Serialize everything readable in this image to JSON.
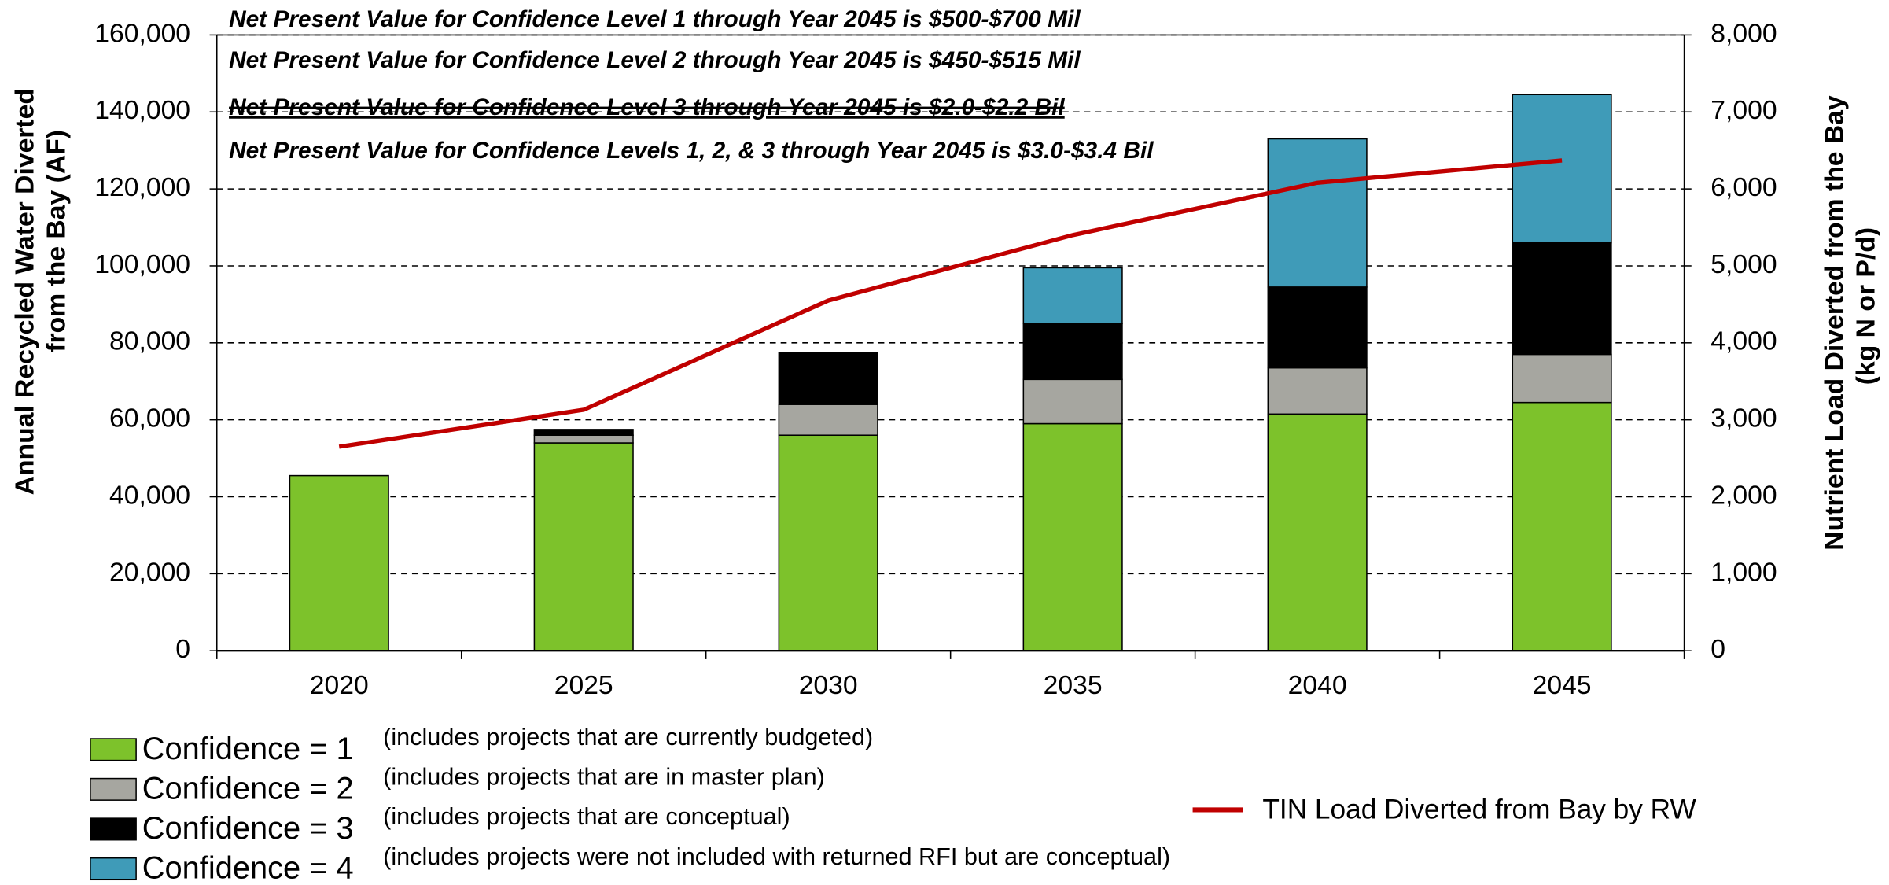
{
  "chart_data": {
    "type": "stacked_bar_line",
    "annotations": [
      "Net Present Value for Confidence Level 1 through Year 2045 is $500-$700 Mil",
      "Net Present Value for Confidence Level 2 through Year 2045 is $450-$515 Mil",
      "Net Present Value for Confidence Level 3 through Year 2045 is $2.0-$2.2  Bil",
      "Net Present Value for Confidence Levels 1, 2, & 3 through Year 2045 is $3.0-$3.4 Bil"
    ],
    "y_label": [
      "Annual Recycled Water Diverted",
      "from the Bay (AF)"
    ],
    "y2_label": [
      "Nutrient Load Diverted from the Bay",
      "(kg N or P/d)"
    ],
    "categories": [
      "2020",
      "2025",
      "2030",
      "2035",
      "2040",
      "2045"
    ],
    "series": [
      {
        "name": "Confidence = 1",
        "note": "(includes projects that are currently budgeted)",
        "color": "#7dc22b",
        "values": [
          45500,
          54000,
          56000,
          59000,
          61500,
          64500
        ]
      },
      {
        "name": "Confidence = 2",
        "note": "(includes projects that are in master plan)",
        "color": "#a6a6a0",
        "values": [
          0,
          2000,
          8000,
          11500,
          12000,
          12500
        ]
      },
      {
        "name": "Confidence = 3",
        "note": "(includes projects that are conceptual)",
        "color": "#000000",
        "values": [
          0,
          1500,
          13500,
          14500,
          21000,
          29000
        ]
      },
      {
        "name": "Confidence = 4",
        "note": "(includes projects were not included with returned RFI but are conceptual)",
        "color": "#3f9bb8",
        "values": [
          0,
          0,
          0,
          14500,
          38500,
          38500
        ]
      },
      {
        "name": "TIN Load Diverted from Bay by RW",
        "type": "line",
        "axis": "y2",
        "color": "#c00000",
        "values": [
          2650,
          3130,
          4550,
          5400,
          6080,
          6370
        ]
      }
    ],
    "ylim": [
      0,
      160000
    ],
    "yticks": [
      0,
      {
        "value": 20000,
        "label": "20,000"
      },
      {
        "value": 40000,
        "label": "40,000"
      },
      {
        "value": 60000,
        "label": "60,000"
      },
      {
        "value": 80000,
        "label": "80,000"
      },
      {
        "value": 100000,
        "label": "100,000"
      },
      {
        "value": 120000,
        "label": "120,000"
      },
      {
        "value": 140000,
        "label": "140,000"
      },
      {
        "value": 160000,
        "label": "160,000"
      }
    ],
    "y2lim": [
      0,
      8000
    ],
    "y2ticks": [
      0,
      {
        "value": 1000,
        "label": "1,000"
      },
      {
        "value": 2000,
        "label": "2,000"
      },
      {
        "value": 3000,
        "label": "3,000"
      },
      {
        "value": 4000,
        "label": "4,000"
      },
      {
        "value": 5000,
        "label": "5,000"
      },
      {
        "value": 6000,
        "label": "6,000"
      },
      {
        "value": 7000,
        "label": "7,000"
      },
      {
        "value": 8000,
        "label": "8,000"
      }
    ],
    "grid": true
  }
}
